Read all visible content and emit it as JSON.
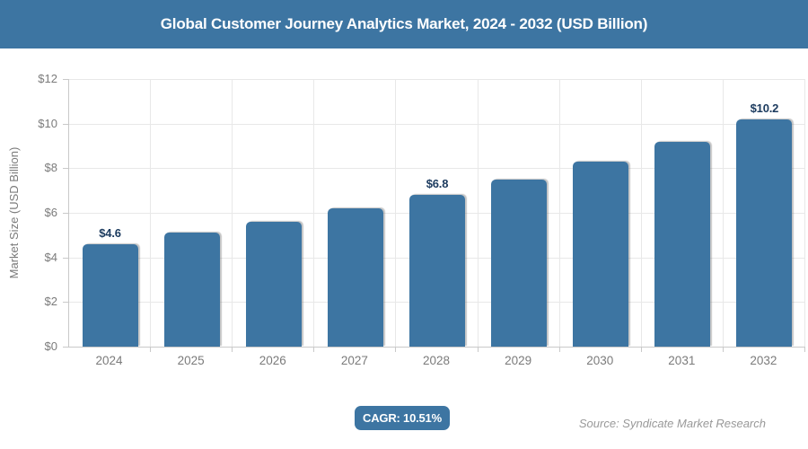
{
  "header": {
    "title": "Global Customer Journey Analytics Market, 2024 - 2032 (USD Billion)"
  },
  "chart_data": {
    "type": "bar",
    "title": "Global Customer Journey Analytics Market, 2024 - 2032 (USD Billion)",
    "categories": [
      "2024",
      "2025",
      "2026",
      "2027",
      "2028",
      "2029",
      "2030",
      "2031",
      "2032"
    ],
    "values": [
      4.6,
      5.1,
      5.6,
      6.2,
      6.8,
      7.5,
      8.3,
      9.2,
      10.2
    ],
    "data_labels": [
      "$4.6",
      "",
      "",
      "",
      "$6.8",
      "",
      "",
      "",
      "$10.2"
    ],
    "xlabel": "",
    "ylabel": "Market Size (USD Billion)",
    "ylim": [
      0,
      12
    ],
    "ytick_step": 2,
    "ytick_labels": [
      "$0",
      "$2",
      "$4",
      "$6",
      "$8",
      "$10",
      "$12"
    ],
    "grid": true,
    "legend": false,
    "bar_color": "#3d75a2"
  },
  "footer": {
    "cagr_label": "CAGR: 10.51%",
    "source": "Source: Syndicate Market Research"
  },
  "colors": {
    "accent_teal": "#3d75a2",
    "data_label_navy": "#1b3a5e",
    "axis_text_gray": "#7b7b7b",
    "source_gray": "#999999",
    "grid_gray": "#e8e8e8",
    "axis_line_gray": "#c9c9c9",
    "title_text_white": "#ffffff"
  }
}
